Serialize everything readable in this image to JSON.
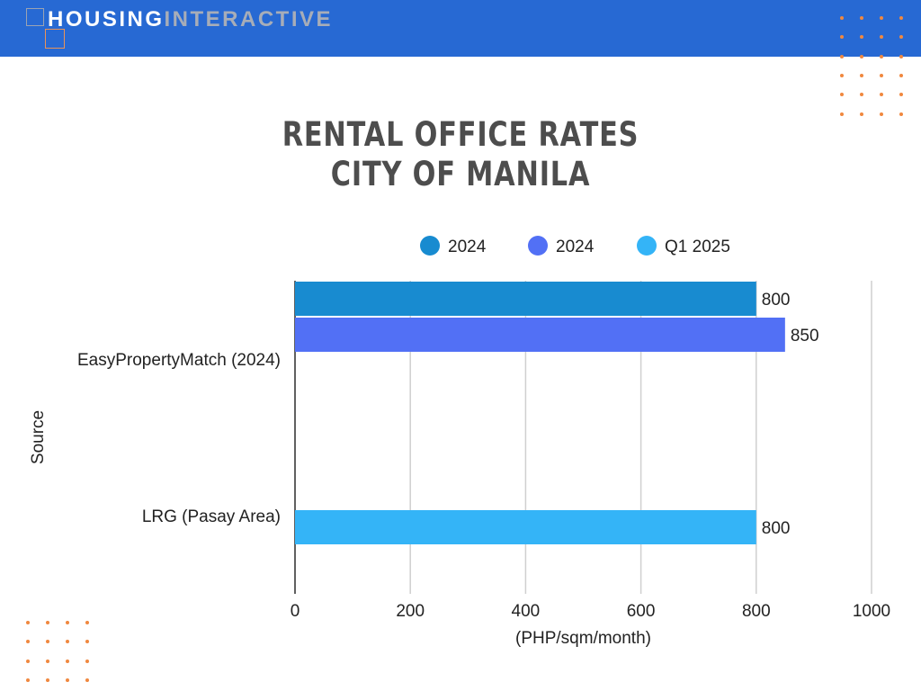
{
  "header": {
    "brand_primary": "HOUSING",
    "brand_secondary": "INTERACTIVE",
    "bar_color": "#2769d3"
  },
  "title_lines": [
    "RENTAL OFFICE RATES",
    "CITY OF MANILA"
  ],
  "chart_data": {
    "type": "bar",
    "orientation": "horizontal",
    "title": "RENTAL OFFICE RATES CITY OF MANILA",
    "categories": [
      "EasyPropertyMatch (2024)",
      "LRG (Pasay Area)"
    ],
    "series": [
      {
        "name": "2024",
        "color": "#188bd0",
        "values": [
          800,
          null
        ]
      },
      {
        "name": "2024",
        "color": "#5270f5",
        "values": [
          850,
          null
        ]
      },
      {
        "name": "Q1 2025",
        "color": "#34b4f7",
        "values": [
          null,
          800
        ]
      }
    ],
    "xlabel": "(PHP/sqm/month)",
    "ylabel": "Source",
    "xlim": [
      0,
      1000
    ],
    "xticks": [
      0,
      200,
      400,
      600,
      800,
      1000
    ],
    "grid": "vertical",
    "legend_position": "top",
    "data_labels": true
  }
}
